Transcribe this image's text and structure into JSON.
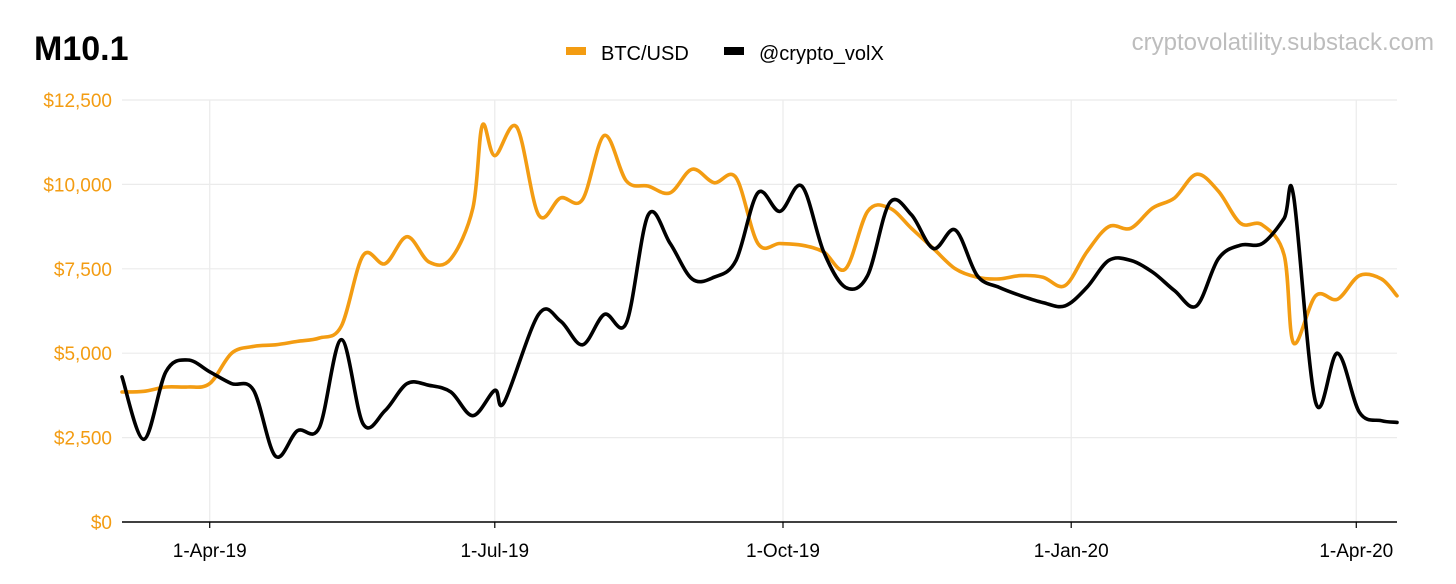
{
  "chart_data": {
    "type": "line",
    "title": "M10.1",
    "watermark": "cryptovolatility.substack.com",
    "legend_position": "top-center",
    "grid": true,
    "x_range": [
      "2019-03-04",
      "2020-04-14"
    ],
    "ylim": [
      0,
      12500
    ],
    "y_ticks": [
      0,
      2500,
      5000,
      7500,
      10000,
      12500
    ],
    "y_tick_labels": [
      "$0",
      "$2,500",
      "$5,000",
      "$7,500",
      "$10,000",
      "$12,500"
    ],
    "x_ticks": [
      "2019-04-01",
      "2019-07-01",
      "2019-10-01",
      "2020-01-01",
      "2020-04-01"
    ],
    "x_tick_labels": [
      "1-Apr-19",
      "1-Jul-19",
      "1-Oct-19",
      "1-Jan-20",
      "1-Apr-20"
    ],
    "series": [
      {
        "name": "BTC/USD",
        "color": "#F39C12",
        "points": [
          [
            "2019-03-04",
            3850
          ],
          [
            "2019-03-11",
            3870
          ],
          [
            "2019-03-18",
            4000
          ],
          [
            "2019-03-25",
            4000
          ],
          [
            "2019-04-01",
            4100
          ],
          [
            "2019-04-08",
            5000
          ],
          [
            "2019-04-15",
            5200
          ],
          [
            "2019-04-22",
            5250
          ],
          [
            "2019-04-29",
            5350
          ],
          [
            "2019-05-06",
            5450
          ],
          [
            "2019-05-13",
            5800
          ],
          [
            "2019-05-20",
            7900
          ],
          [
            "2019-05-27",
            7650
          ],
          [
            "2019-06-03",
            8450
          ],
          [
            "2019-06-10",
            7700
          ],
          [
            "2019-06-17",
            7800
          ],
          [
            "2019-06-24",
            9300
          ],
          [
            "2019-06-27",
            11750
          ],
          [
            "2019-07-01",
            10850
          ],
          [
            "2019-07-08",
            11700
          ],
          [
            "2019-07-15",
            9100
          ],
          [
            "2019-07-22",
            9600
          ],
          [
            "2019-07-29",
            9550
          ],
          [
            "2019-08-05",
            11450
          ],
          [
            "2019-08-12",
            10100
          ],
          [
            "2019-08-19",
            9950
          ],
          [
            "2019-08-26",
            9750
          ],
          [
            "2019-09-02",
            10450
          ],
          [
            "2019-09-09",
            10050
          ],
          [
            "2019-09-16",
            10200
          ],
          [
            "2019-09-23",
            8250
          ],
          [
            "2019-09-30",
            8250
          ],
          [
            "2019-10-07",
            8200
          ],
          [
            "2019-10-14",
            8000
          ],
          [
            "2019-10-21",
            7500
          ],
          [
            "2019-10-28",
            9200
          ],
          [
            "2019-11-04",
            9300
          ],
          [
            "2019-11-11",
            8700
          ],
          [
            "2019-11-18",
            8100
          ],
          [
            "2019-11-25",
            7500
          ],
          [
            "2019-12-02",
            7250
          ],
          [
            "2019-12-09",
            7200
          ],
          [
            "2019-12-16",
            7300
          ],
          [
            "2019-12-23",
            7250
          ],
          [
            "2019-12-30",
            7000
          ],
          [
            "2020-01-06",
            8000
          ],
          [
            "2020-01-13",
            8750
          ],
          [
            "2020-01-20",
            8700
          ],
          [
            "2020-01-27",
            9300
          ],
          [
            "2020-02-03",
            9600
          ],
          [
            "2020-02-10",
            10300
          ],
          [
            "2020-02-17",
            9800
          ],
          [
            "2020-02-24",
            8850
          ],
          [
            "2020-03-02",
            8800
          ],
          [
            "2020-03-09",
            7900
          ],
          [
            "2020-03-12",
            5300
          ],
          [
            "2020-03-19",
            6700
          ],
          [
            "2020-03-26",
            6600
          ],
          [
            "2020-04-02",
            7300
          ],
          [
            "2020-04-09",
            7200
          ],
          [
            "2020-04-14",
            6700
          ]
        ]
      },
      {
        "name": "@crypto_volX",
        "color": "#000000",
        "points": [
          [
            "2019-03-04",
            4300
          ],
          [
            "2019-03-11",
            2450
          ],
          [
            "2019-03-18",
            4450
          ],
          [
            "2019-03-25",
            4800
          ],
          [
            "2019-04-01",
            4450
          ],
          [
            "2019-04-08",
            4100
          ],
          [
            "2019-04-15",
            3900
          ],
          [
            "2019-04-22",
            1950
          ],
          [
            "2019-04-29",
            2700
          ],
          [
            "2019-05-06",
            2800
          ],
          [
            "2019-05-13",
            5400
          ],
          [
            "2019-05-20",
            2900
          ],
          [
            "2019-05-27",
            3300
          ],
          [
            "2019-06-03",
            4100
          ],
          [
            "2019-06-10",
            4050
          ],
          [
            "2019-06-17",
            3850
          ],
          [
            "2019-06-24",
            3150
          ],
          [
            "2019-07-01",
            3900
          ],
          [
            "2019-07-04",
            3550
          ],
          [
            "2019-07-15",
            6150
          ],
          [
            "2019-07-22",
            5950
          ],
          [
            "2019-07-29",
            5250
          ],
          [
            "2019-08-05",
            6150
          ],
          [
            "2019-08-12",
            5900
          ],
          [
            "2019-08-19",
            9100
          ],
          [
            "2019-08-26",
            8250
          ],
          [
            "2019-09-02",
            7200
          ],
          [
            "2019-09-09",
            7250
          ],
          [
            "2019-09-16",
            7750
          ],
          [
            "2019-09-23",
            9750
          ],
          [
            "2019-09-30",
            9200
          ],
          [
            "2019-10-07",
            9950
          ],
          [
            "2019-10-14",
            8000
          ],
          [
            "2019-10-21",
            6950
          ],
          [
            "2019-10-28",
            7300
          ],
          [
            "2019-11-04",
            9450
          ],
          [
            "2019-11-11",
            9100
          ],
          [
            "2019-11-18",
            8100
          ],
          [
            "2019-11-25",
            8650
          ],
          [
            "2019-12-02",
            7300
          ],
          [
            "2019-12-09",
            6950
          ],
          [
            "2019-12-16",
            6700
          ],
          [
            "2019-12-23",
            6500
          ],
          [
            "2019-12-30",
            6400
          ],
          [
            "2020-01-06",
            6950
          ],
          [
            "2020-01-13",
            7750
          ],
          [
            "2020-01-20",
            7750
          ],
          [
            "2020-01-27",
            7400
          ],
          [
            "2020-02-03",
            6850
          ],
          [
            "2020-02-10",
            6400
          ],
          [
            "2020-02-17",
            7800
          ],
          [
            "2020-02-24",
            8200
          ],
          [
            "2020-03-02",
            8250
          ],
          [
            "2020-03-09",
            9000
          ],
          [
            "2020-03-12",
            9650
          ],
          [
            "2020-03-19",
            3550
          ],
          [
            "2020-03-26",
            5000
          ],
          [
            "2020-04-02",
            3250
          ],
          [
            "2020-04-09",
            3000
          ],
          [
            "2020-04-14",
            2950
          ]
        ]
      }
    ]
  },
  "colors": {
    "accent": "#F39C12",
    "axis_tick_text": "#F39C12",
    "grid": "#EBEBEB",
    "watermark": "#BDBDBD"
  }
}
